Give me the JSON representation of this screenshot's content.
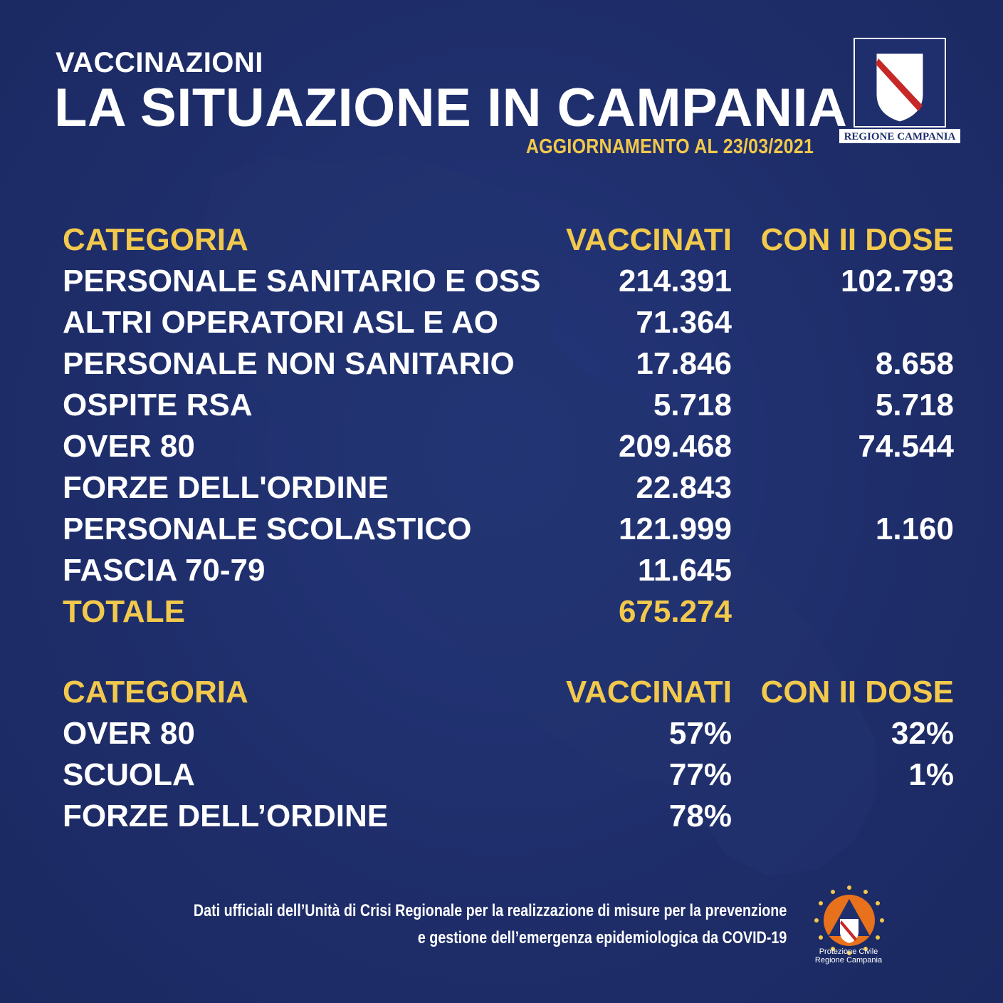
{
  "header": {
    "kicker": "VACCINAZIONI",
    "title": "LA SITUAZIONE IN CAMPANIA",
    "update": "AGGIORNAMENTO AL 23/03/2021"
  },
  "logo": {
    "label": "REGIONE CAMPANIA"
  },
  "colors": {
    "background": "#1f2f6e",
    "accent": "#f2c94c",
    "text": "#ffffff"
  },
  "table1": {
    "headers": [
      "CATEGORIA",
      "VACCINATI",
      "CON II DOSE"
    ],
    "rows": [
      [
        "PERSONALE SANITARIO E OSS",
        "214.391",
        "102.793"
      ],
      [
        "ALTRI OPERATORI ASL E AO",
        "71.364",
        ""
      ],
      [
        "PERSONALE NON SANITARIO",
        "17.846",
        "8.658"
      ],
      [
        "OSPITE RSA",
        "5.718",
        "5.718"
      ],
      [
        "OVER 80",
        "209.468",
        "74.544"
      ],
      [
        "FORZE DELL'ORDINE",
        "22.843",
        ""
      ],
      [
        "PERSONALE SCOLASTICO",
        "121.999",
        "1.160"
      ],
      [
        "FASCIA 70-79",
        "11.645",
        ""
      ]
    ],
    "total": [
      "TOTALE",
      "675.274"
    ]
  },
  "table2": {
    "headers": [
      "CATEGORIA",
      "VACCINATI",
      "CON II DOSE"
    ],
    "rows": [
      [
        "OVER 80",
        "57%",
        "32%"
      ],
      [
        "SCUOLA",
        "77%",
        "1%"
      ],
      [
        "FORZE DELL’ORDINE",
        "78%",
        ""
      ]
    ]
  },
  "footer": {
    "line1": "Dati ufficiali dell’Unità di Crisi Regionale per la realizzazione di misure per la  prevenzione",
    "line2": "e gestione dell’emergenza epidemiologica da COVID-19",
    "pc_logo_line1": "Protezione Civile",
    "pc_logo_line2": "Regione Campania"
  }
}
